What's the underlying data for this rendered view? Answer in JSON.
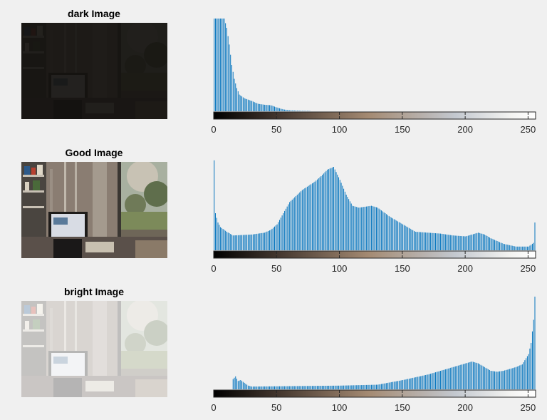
{
  "figure": {
    "background": "#f0f0f0",
    "bar_color": "#0072bd"
  },
  "panels": [
    {
      "title": "dark Image",
      "thumbnail": "dark"
    },
    {
      "title": "Good Image",
      "thumbnail": "good"
    },
    {
      "title": "bright Image",
      "thumbnail": "bright"
    }
  ],
  "chart_data": [
    {
      "type": "bar",
      "title": "",
      "xlabel": "",
      "ylabel": "",
      "xlim": [
        0,
        256
      ],
      "xticks": [
        0,
        50,
        100,
        150,
        200,
        250
      ],
      "colorbar": "grayscale-to-white",
      "bins": [
        {
          "x": 0,
          "y": 1.0
        },
        {
          "x": 5,
          "y": 1.0
        },
        {
          "x": 8,
          "y": 1.0
        },
        {
          "x": 10,
          "y": 0.9
        },
        {
          "x": 12,
          "y": 0.72
        },
        {
          "x": 14,
          "y": 0.5
        },
        {
          "x": 16,
          "y": 0.35
        },
        {
          "x": 18,
          "y": 0.25
        },
        {
          "x": 20,
          "y": 0.18
        },
        {
          "x": 24,
          "y": 0.14
        },
        {
          "x": 30,
          "y": 0.11
        },
        {
          "x": 35,
          "y": 0.08
        },
        {
          "x": 40,
          "y": 0.07
        },
        {
          "x": 45,
          "y": 0.065
        },
        {
          "x": 50,
          "y": 0.04
        },
        {
          "x": 55,
          "y": 0.02
        },
        {
          "x": 60,
          "y": 0.01
        },
        {
          "x": 70,
          "y": 0.004
        },
        {
          "x": 100,
          "y": 0.0
        },
        {
          "x": 255,
          "y": 0.0
        }
      ]
    },
    {
      "type": "bar",
      "title": "",
      "xlabel": "",
      "ylabel": "",
      "xlim": [
        0,
        256
      ],
      "xticks": [
        0,
        50,
        100,
        150,
        200,
        250
      ],
      "colorbar": "grayscale-to-white",
      "bins": [
        {
          "x": 0,
          "y": 0.97
        },
        {
          "x": 1,
          "y": 0.4
        },
        {
          "x": 3,
          "y": 0.3
        },
        {
          "x": 5,
          "y": 0.25
        },
        {
          "x": 10,
          "y": 0.2
        },
        {
          "x": 15,
          "y": 0.16
        },
        {
          "x": 30,
          "y": 0.17
        },
        {
          "x": 40,
          "y": 0.19
        },
        {
          "x": 45,
          "y": 0.22
        },
        {
          "x": 50,
          "y": 0.28
        },
        {
          "x": 55,
          "y": 0.4
        },
        {
          "x": 60,
          "y": 0.52
        },
        {
          "x": 70,
          "y": 0.65
        },
        {
          "x": 80,
          "y": 0.74
        },
        {
          "x": 85,
          "y": 0.8
        },
        {
          "x": 90,
          "y": 0.87
        },
        {
          "x": 95,
          "y": 0.9
        },
        {
          "x": 100,
          "y": 0.76
        },
        {
          "x": 105,
          "y": 0.6
        },
        {
          "x": 110,
          "y": 0.48
        },
        {
          "x": 115,
          "y": 0.46
        },
        {
          "x": 125,
          "y": 0.48
        },
        {
          "x": 130,
          "y": 0.46
        },
        {
          "x": 140,
          "y": 0.36
        },
        {
          "x": 150,
          "y": 0.28
        },
        {
          "x": 160,
          "y": 0.2
        },
        {
          "x": 170,
          "y": 0.19
        },
        {
          "x": 180,
          "y": 0.18
        },
        {
          "x": 190,
          "y": 0.16
        },
        {
          "x": 200,
          "y": 0.15
        },
        {
          "x": 205,
          "y": 0.17
        },
        {
          "x": 210,
          "y": 0.19
        },
        {
          "x": 215,
          "y": 0.17
        },
        {
          "x": 220,
          "y": 0.13
        },
        {
          "x": 230,
          "y": 0.07
        },
        {
          "x": 240,
          "y": 0.04
        },
        {
          "x": 250,
          "y": 0.04
        },
        {
          "x": 254,
          "y": 0.08
        },
        {
          "x": 255,
          "y": 0.3
        }
      ]
    },
    {
      "type": "bar",
      "title": "",
      "xlabel": "",
      "ylabel": "",
      "xlim": [
        0,
        256
      ],
      "xticks": [
        0,
        50,
        100,
        150,
        200,
        250
      ],
      "colorbar": "grayscale-to-white",
      "bins": [
        {
          "x": 0,
          "y": 0.0
        },
        {
          "x": 14,
          "y": 0.0
        },
        {
          "x": 15,
          "y": 0.11
        },
        {
          "x": 17,
          "y": 0.14
        },
        {
          "x": 19,
          "y": 0.09
        },
        {
          "x": 21,
          "y": 0.1
        },
        {
          "x": 24,
          "y": 0.07
        },
        {
          "x": 27,
          "y": 0.04
        },
        {
          "x": 30,
          "y": 0.03
        },
        {
          "x": 100,
          "y": 0.04
        },
        {
          "x": 130,
          "y": 0.05
        },
        {
          "x": 150,
          "y": 0.1
        },
        {
          "x": 170,
          "y": 0.16
        },
        {
          "x": 190,
          "y": 0.24
        },
        {
          "x": 200,
          "y": 0.28
        },
        {
          "x": 205,
          "y": 0.3
        },
        {
          "x": 210,
          "y": 0.28
        },
        {
          "x": 215,
          "y": 0.24
        },
        {
          "x": 220,
          "y": 0.2
        },
        {
          "x": 225,
          "y": 0.19
        },
        {
          "x": 230,
          "y": 0.2
        },
        {
          "x": 240,
          "y": 0.24
        },
        {
          "x": 245,
          "y": 0.27
        },
        {
          "x": 250,
          "y": 0.38
        },
        {
          "x": 252,
          "y": 0.5
        },
        {
          "x": 254,
          "y": 0.75
        },
        {
          "x": 255,
          "y": 1.0
        }
      ]
    }
  ]
}
